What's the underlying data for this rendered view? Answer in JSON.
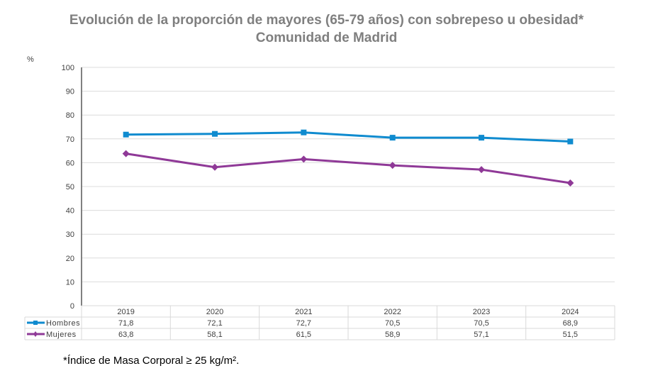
{
  "title_line1": "Evolución de la proporción de mayores (65-79 años) con sobrepeso u obesidad*",
  "title_line2": "Comunidad de Madrid",
  "footnote": "*Índice de Masa Corporal ≥ 25 kg/m².",
  "chart_data": {
    "type": "line",
    "title": "Evolución de la proporción de mayores (65-79 años) con sobrepeso u obesidad* Comunidad de Madrid",
    "ylabel": "%",
    "ylim": [
      0,
      100
    ],
    "yticks": [
      0,
      10,
      20,
      30,
      40,
      50,
      60,
      70,
      80,
      90,
      100
    ],
    "grid": true,
    "legend": "data-table",
    "categories": [
      "2019",
      "2020",
      "2021",
      "2022",
      "2023",
      "2024"
    ],
    "series": [
      {
        "name": "Hombres",
        "values": [
          71.8,
          72.1,
          72.7,
          70.5,
          70.5,
          68.9
        ],
        "labels": [
          "71,8",
          "72,1",
          "72,7",
          "70,5",
          "70,5",
          "68,9"
        ],
        "color": "#0f8bcf",
        "marker": "square"
      },
      {
        "name": "Mujeres",
        "values": [
          63.8,
          58.1,
          61.5,
          58.9,
          57.1,
          51.5
        ],
        "labels": [
          "63,8",
          "58,1",
          "61,5",
          "58,9",
          "57,1",
          "51,5"
        ],
        "color": "#8f3997",
        "marker": "diamond"
      }
    ]
  }
}
